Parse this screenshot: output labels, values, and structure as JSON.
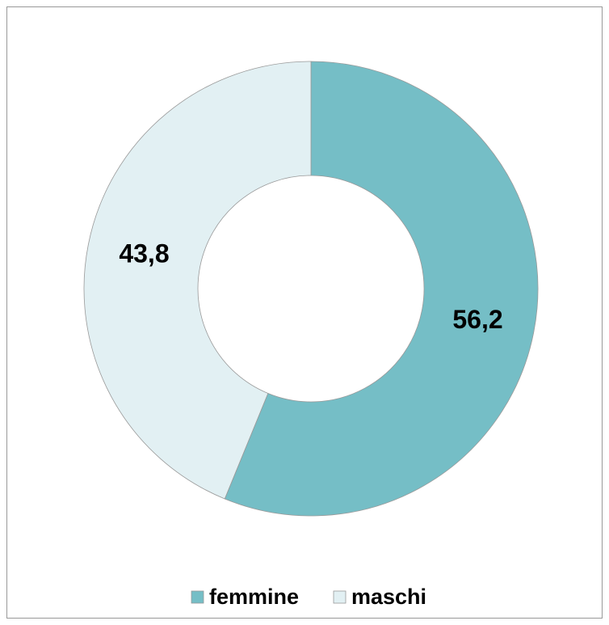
{
  "chart_data": {
    "type": "donut",
    "categories": [
      "femmine",
      "maschi"
    ],
    "values": [
      56.2,
      43.8
    ],
    "value_labels": [
      "56,2",
      "43,8"
    ],
    "colors": [
      "#75bec6",
      "#e2f0f3"
    ],
    "legend": "bottom"
  }
}
